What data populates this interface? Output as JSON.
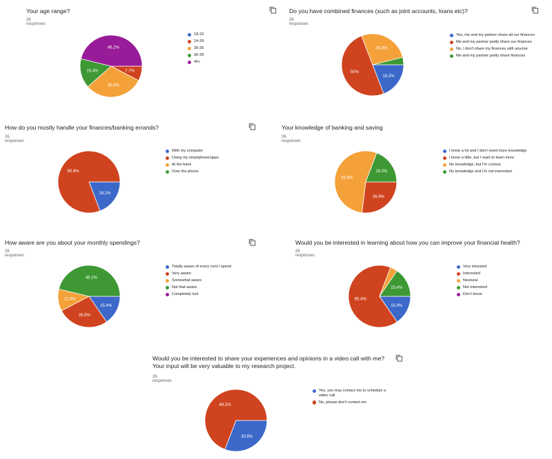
{
  "colors": {
    "blue": "#3b68c9",
    "red": "#d0431f",
    "orange": "#f4a13a",
    "green": "#3e9934",
    "purple": "#981c9a"
  },
  "icon": "copy-icon",
  "chart_data": [
    {
      "type": "pie",
      "title": "Your age range?",
      "responses": "26 responses",
      "categories": [
        "18-23",
        "24-29",
        "30-35",
        "36-39",
        "40+"
      ],
      "values": [
        0,
        7.7,
        30.8,
        15.4,
        46.2
      ],
      "slice_labels": [
        "",
        "7.7%",
        "30.8%",
        "15.4%",
        "46.2%"
      ],
      "colors": [
        "blue",
        "red",
        "orange",
        "green",
        "purple"
      ],
      "legend_position": "right"
    },
    {
      "type": "pie",
      "title": "Do you have combined finances (such as joint accounts, loans etc)?",
      "responses": "26 responses",
      "categories": [
        "Yes, me and my partner share all our finances",
        "Me and my partner partly share our finances",
        "No, I don't share my finances with anyone",
        "Me and my partner partly share finances"
      ],
      "values": [
        19.2,
        50,
        26.9,
        3.9
      ],
      "slice_labels": [
        "19.2%",
        "50%",
        "26.9%",
        ""
      ],
      "colors": [
        "blue",
        "red",
        "orange",
        "green"
      ],
      "legend_position": "right"
    },
    {
      "type": "pie",
      "title": "How do you mostly handle your finances/banking errands?",
      "responses": "26 responses",
      "categories": [
        "With my computer",
        "Using my smartphone/apps",
        "At the bank",
        "Over the phone"
      ],
      "values": [
        19.2,
        80.8,
        0,
        0
      ],
      "slice_labels": [
        "19.2%",
        "80.8%",
        "",
        ""
      ],
      "colors": [
        "blue",
        "red",
        "orange",
        "green"
      ],
      "legend_position": "right"
    },
    {
      "type": "pie",
      "title": "Your knowledge of banking and saving",
      "responses": "26 responses",
      "categories": [
        "I know a lot and I don't need more knowledge",
        "I know a little, but I want to learn more",
        "No knowledge, but I'm curious",
        "No knowledge and I'm not interested"
      ],
      "values": [
        0,
        26.9,
        53.8,
        19.2
      ],
      "slice_labels": [
        "",
        "26.9%",
        "53.8%",
        "19.2%"
      ],
      "colors": [
        "blue",
        "red",
        "orange",
        "green"
      ],
      "legend_position": "right"
    },
    {
      "type": "pie",
      "title": "How aware are you about your monthly spendings?",
      "responses": "26 responses",
      "categories": [
        "Totally aware of every cent I spend",
        "Very aware",
        "Somewhat aware",
        "Not that aware",
        "Completely lost"
      ],
      "values": [
        15.4,
        26.9,
        11.5,
        46.2,
        0
      ],
      "slice_labels": [
        "15.4%",
        "26.9%",
        "11.5%",
        "46.2%",
        ""
      ],
      "colors": [
        "blue",
        "red",
        "orange",
        "green",
        "purple"
      ],
      "legend_position": "right"
    },
    {
      "type": "pie",
      "title": "Would you be interested in learning about how you can improve your financial health?",
      "responses": "26 responses",
      "categories": [
        "Very intrested",
        "Interested",
        "Neutural",
        "Not interested",
        "Don't know"
      ],
      "values": [
        15.4,
        65.4,
        3.8,
        15.4,
        0
      ],
      "slice_labels": [
        "15.4%",
        "65.4%",
        "",
        "15.4%",
        ""
      ],
      "colors": [
        "blue",
        "red",
        "orange",
        "green",
        "purple"
      ],
      "legend_position": "right"
    },
    {
      "type": "pie",
      "title": "Would you be interested to share your experiences and opinions in a video call with me? Your input will be very valuable to my research project.",
      "responses": "26 responses",
      "categories": [
        "Yes, you may contact me to schedule a video call",
        "No, please don't contact me"
      ],
      "values": [
        30.8,
        69.2
      ],
      "slice_labels": [
        "30.8%",
        "69.2%"
      ],
      "colors": [
        "blue",
        "red"
      ],
      "legend_position": "right"
    }
  ]
}
